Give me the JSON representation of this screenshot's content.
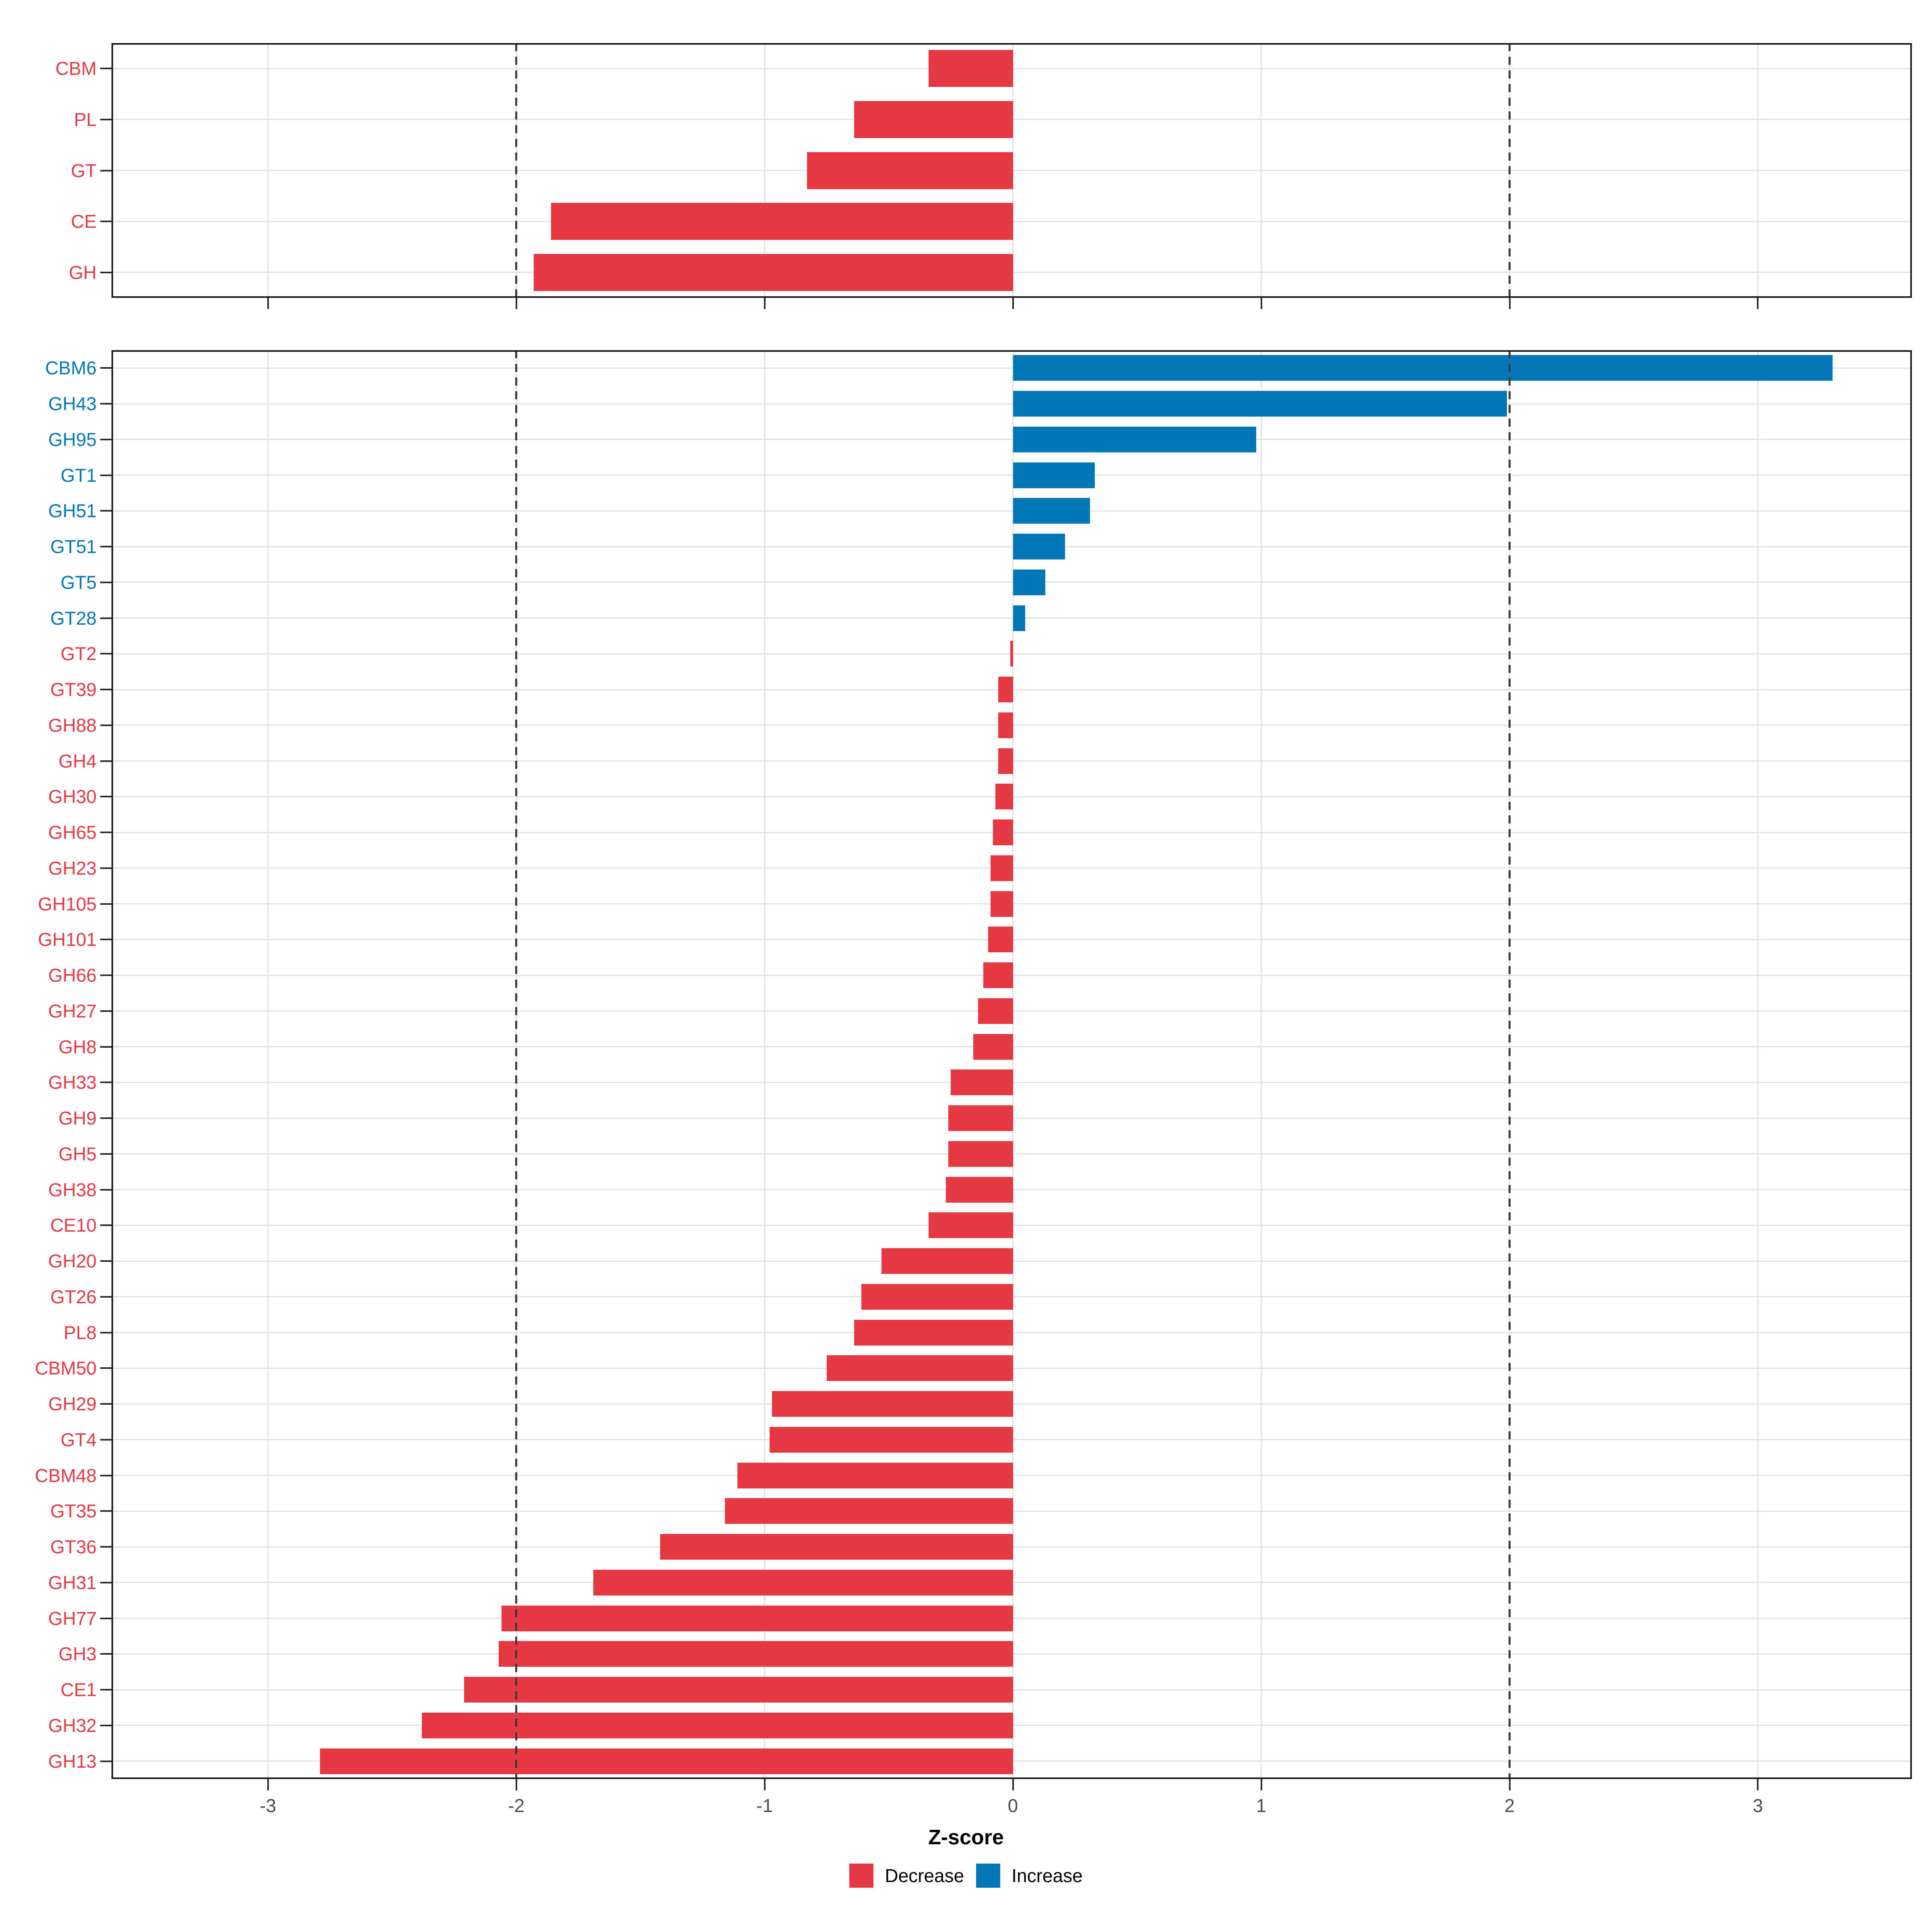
{
  "x_axis": {
    "title": "Z-score",
    "range": [
      -3.63,
      3.62
    ],
    "ticks": [
      {
        "value": -3,
        "label": "-3"
      },
      {
        "value": -2,
        "label": "-2"
      },
      {
        "value": -1,
        "label": "-1"
      },
      {
        "value": 0,
        "label": "0"
      },
      {
        "value": 1,
        "label": "1"
      },
      {
        "value": 2,
        "label": "2"
      },
      {
        "value": 3,
        "label": "3"
      }
    ],
    "dashed_reference_lines": [
      -2,
      2
    ],
    "grid": "major-only"
  },
  "legend": {
    "position": "bottom-center",
    "items": [
      {
        "label": "Decrease",
        "color": "#E53946"
      },
      {
        "label": "Increase",
        "color": "#0277B5"
      }
    ]
  },
  "colors": {
    "decrease": "#E53946",
    "increase": "#0277B5",
    "gridline": "#e2e2e2",
    "dashed_line": "#3a3a3a",
    "tick_label": "#4d4d4d",
    "panel_border": "#1a1a1a"
  },
  "chart_data": [
    {
      "type": "bar",
      "orientation": "horizontal",
      "panel": "top",
      "categories": [
        "CBM",
        "PL",
        "GT",
        "CE",
        "GH"
      ],
      "values": [
        -0.34,
        -0.64,
        -0.83,
        -1.86,
        -1.93
      ],
      "xlim": [
        -3.63,
        3.62
      ],
      "color_rule": "red if value < 0, blue if value > 0",
      "legend_position": "none"
    },
    {
      "type": "bar",
      "orientation": "horizontal",
      "panel": "bottom",
      "categories": [
        "CBM6",
        "GH43",
        "GH95",
        "GT1",
        "GH51",
        "GT51",
        "GT5",
        "GT28",
        "GT2",
        "GT39",
        "GH88",
        "GH4",
        "GH30",
        "GH65",
        "GH23",
        "GH105",
        "GH101",
        "GH66",
        "GH27",
        "GH8",
        "GH33",
        "GH9",
        "GH5",
        "GH38",
        "CE10",
        "GH20",
        "GT26",
        "PL8",
        "CBM50",
        "GH29",
        "GT4",
        "CBM48",
        "GT35",
        "GT36",
        "GH31",
        "GH77",
        "GH3",
        "CE1",
        "GH32",
        "GH13"
      ],
      "values": [
        3.3,
        1.99,
        0.98,
        0.33,
        0.31,
        0.21,
        0.13,
        0.05,
        -0.01,
        -0.06,
        -0.06,
        -0.06,
        -0.07,
        -0.08,
        -0.09,
        -0.09,
        -0.1,
        -0.12,
        -0.14,
        -0.16,
        -0.25,
        -0.26,
        -0.26,
        -0.27,
        -0.34,
        -0.53,
        -0.61,
        -0.64,
        -0.75,
        -0.97,
        -0.98,
        -1.11,
        -1.16,
        -1.42,
        -1.69,
        -2.06,
        -2.07,
        -2.21,
        -2.38,
        -2.79
      ],
      "xlim": [
        -3.63,
        3.62
      ],
      "color_rule": "red if value < 0, blue if value > 0",
      "legend_position": "none"
    }
  ]
}
